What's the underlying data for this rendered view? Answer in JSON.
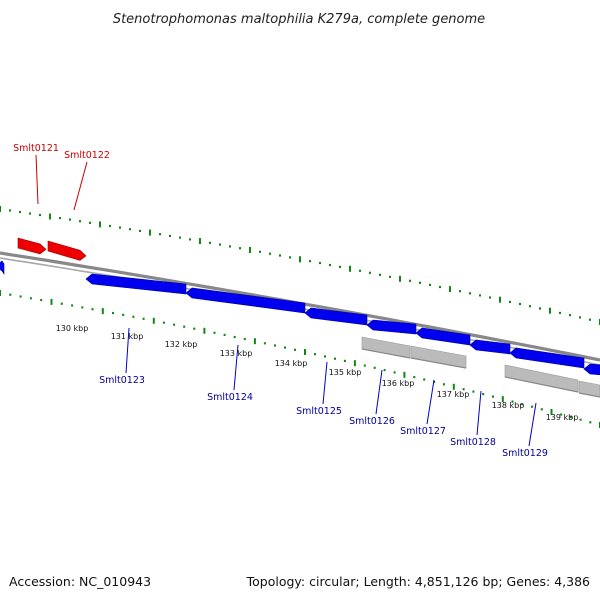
{
  "title": "Stenotrophomonas maltophilia K279a, complete genome",
  "footer": {
    "accession": "Accession: NC_010943",
    "summary": "Topology: circular; Length: 4,851,126 bp; Genes: 4,386"
  },
  "colors": {
    "forward": "#ee0000",
    "reverse": "#0000ee",
    "rna": "#bbbbbb",
    "backbone": "#888888",
    "ticks": "#118811",
    "forward_label": "#cc0000",
    "reverse_label": "#000099"
  },
  "scale_ticks": [
    "130 kbp",
    "131 kbp",
    "132 kbp",
    "133 kbp",
    "134 kbp",
    "135 kbp",
    "136 kbp",
    "137 kbp",
    "138 kbp",
    "139 kbp"
  ],
  "gene_labels": [
    {
      "name": "Smlt0121",
      "strand": "forward"
    },
    {
      "name": "Smlt0122",
      "strand": "forward"
    },
    {
      "name": "Smlt0123",
      "strand": "reverse"
    },
    {
      "name": "Smlt0124",
      "strand": "reverse"
    },
    {
      "name": "Smlt0125",
      "strand": "reverse"
    },
    {
      "name": "Smlt0126",
      "strand": "reverse"
    },
    {
      "name": "Smlt0127",
      "strand": "reverse"
    },
    {
      "name": "Smlt0128",
      "strand": "reverse"
    },
    {
      "name": "Smlt0129",
      "strand": "reverse"
    }
  ]
}
